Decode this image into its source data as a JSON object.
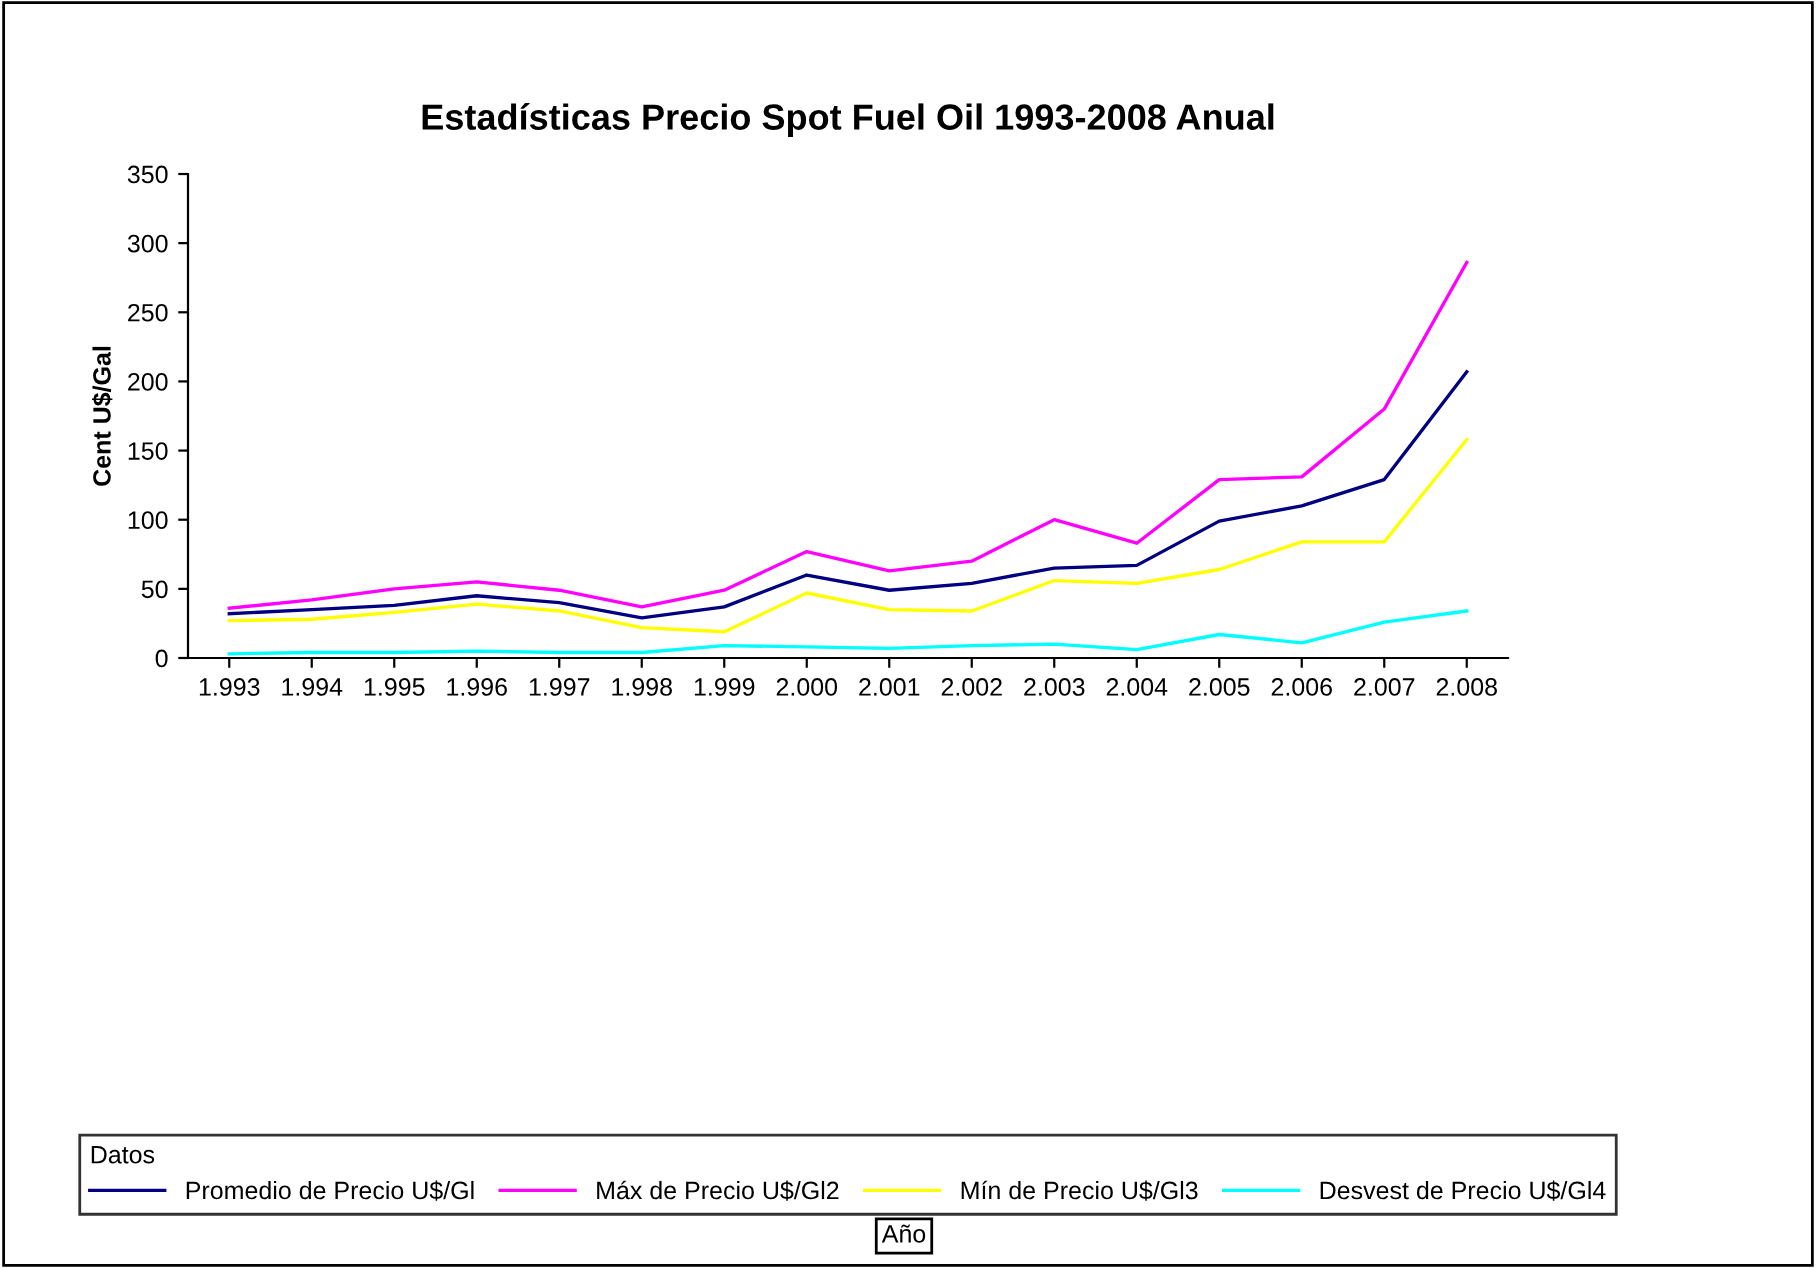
{
  "chart_data": {
    "type": "line",
    "title": "Estadísticas Precio Spot Fuel Oil 1993-2008 Anual",
    "annotations": [
      "Año"
    ],
    "ylabel": "Cent U$/Gal",
    "legend_title": "Datos",
    "legend": "bottom",
    "grid": false,
    "marker": "none",
    "line_style": "solid",
    "categories": [
      "1.993",
      "1.994",
      "1.995",
      "1.996",
      "1.997",
      "1.998",
      "1.999",
      "2.000",
      "2.001",
      "2.002",
      "2.003",
      "2.004",
      "2.005",
      "2.006",
      "2.007",
      "2.008"
    ],
    "ylim": [
      0,
      350
    ],
    "yticks": [
      0,
      50,
      100,
      150,
      200,
      250,
      300,
      350
    ],
    "series": [
      {
        "name": "Promedio de Precio U$/Gl",
        "color": "#000080",
        "values": [
          32,
          35,
          38,
          45,
          40,
          29,
          37,
          60,
          49,
          54,
          65,
          67,
          99,
          110,
          129,
          207
        ]
      },
      {
        "name": "Máx de Precio U$/Gl2",
        "color": "#ff00ff",
        "values": [
          36,
          42,
          50,
          55,
          49,
          37,
          49,
          77,
          63,
          70,
          100,
          83,
          129,
          131,
          180,
          286
        ]
      },
      {
        "name": "Mín de Precio U$/Gl3",
        "color": "#ffff00",
        "values": [
          27,
          28,
          33,
          39,
          34,
          22,
          19,
          47,
          35,
          34,
          56,
          54,
          64,
          84,
          84,
          158
        ]
      },
      {
        "name": "Desvest de Precio U$/Gl4",
        "color": "#00ffff",
        "values": [
          3,
          4,
          4,
          5,
          4,
          4,
          9,
          8,
          7,
          9,
          10,
          6,
          17,
          11,
          26,
          34
        ]
      }
    ]
  }
}
